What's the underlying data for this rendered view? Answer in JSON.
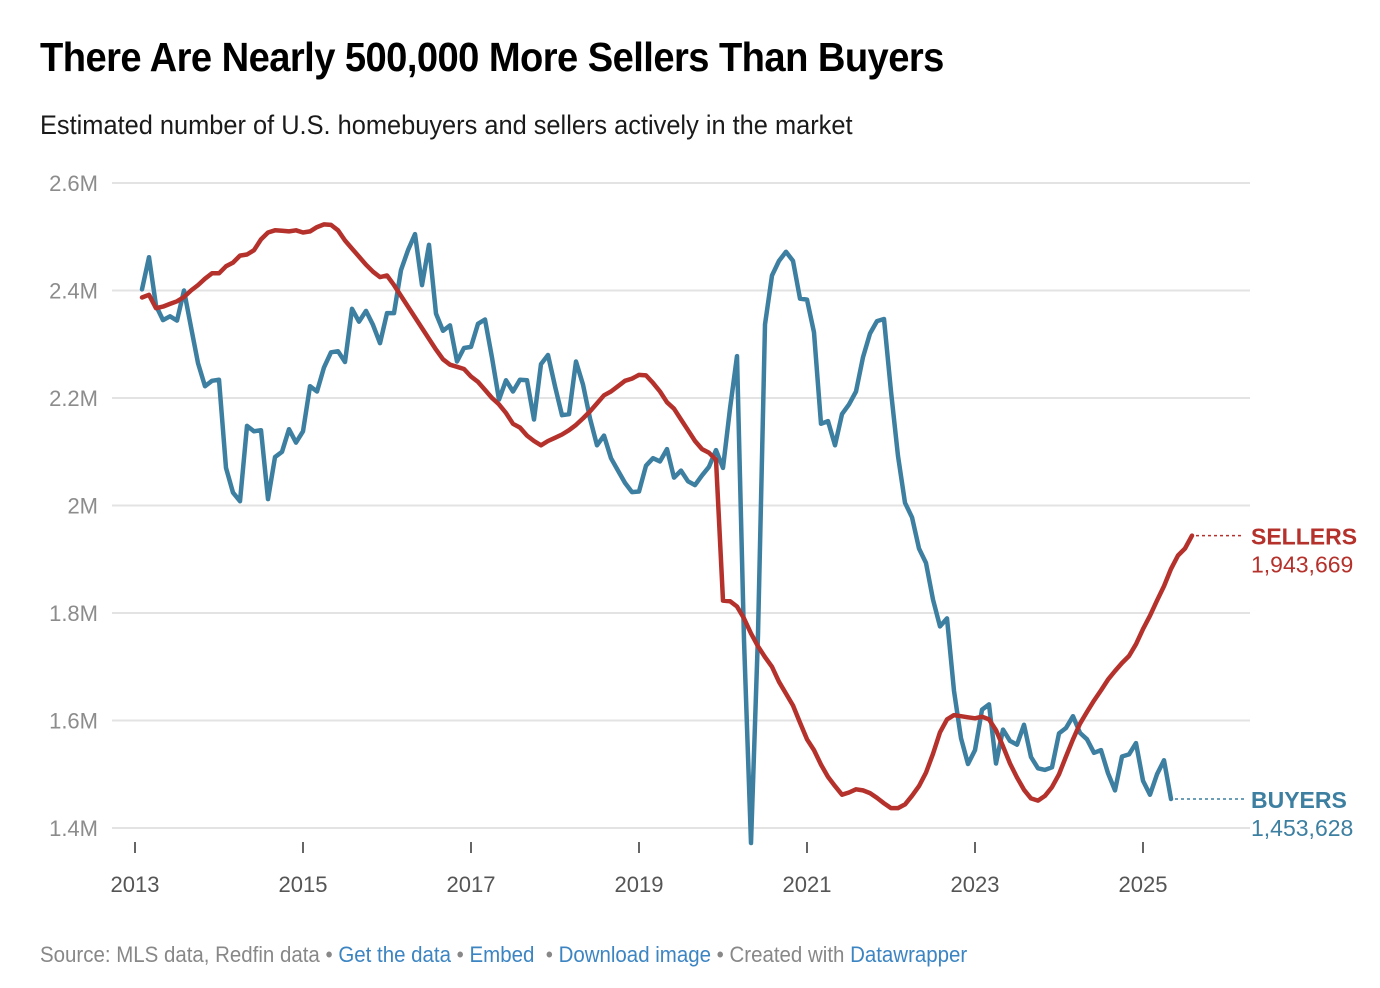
{
  "header": {
    "title": "There Are Nearly 500,000 More Sellers Than Buyers",
    "subtitle": "Estimated number of U.S. homebuyers and sellers actively in the market"
  },
  "footer": {
    "source_text": "Source: MLS data, Redfin data",
    "separator": " • ",
    "get_data_label": "Get the data",
    "embed_label": "Embed",
    "download_label": "Download image",
    "created_with_text": "Created with",
    "datawrapper_label": "Datawrapper"
  },
  "colors": {
    "sellers": "#b5312b",
    "buyers": "#3d7fa0",
    "grid": "#e3e3e3",
    "link": "#3c85c2"
  },
  "chart_data": {
    "type": "line",
    "title": "There Are Nearly 500,000 More Sellers Than Buyers",
    "subtitle": "Estimated number of U.S. homebuyers and sellers actively in the market",
    "xlabel": "",
    "ylabel": "",
    "x_start": "2013-02",
    "x_frequency": "monthly",
    "x_ticks": [
      "2013",
      "2015",
      "2017",
      "2019",
      "2021",
      "2023",
      "2025"
    ],
    "x_range": [
      2013.0,
      2026.25
    ],
    "y_ticks": [
      1.4,
      1.6,
      1.8,
      2.0,
      2.2,
      2.4,
      2.6
    ],
    "y_tick_labels": [
      "1.4M",
      "1.6M",
      "1.8M",
      "2M",
      "2.2M",
      "2.4M",
      "2.6M"
    ],
    "ylim": [
      1.4,
      2.6
    ],
    "y_units": "millions",
    "grid": true,
    "legend": "direct-labels-right",
    "series": [
      {
        "name": "SELLERS",
        "end_label": "SELLERS",
        "end_value": "1,943,669",
        "values": [
          2.387,
          2.392,
          2.367,
          2.37,
          2.375,
          2.38,
          2.388,
          2.4,
          2.41,
          2.422,
          2.432,
          2.432,
          2.445,
          2.452,
          2.465,
          2.467,
          2.475,
          2.495,
          2.508,
          2.512,
          2.511,
          2.51,
          2.512,
          2.508,
          2.51,
          2.518,
          2.523,
          2.522,
          2.512,
          2.493,
          2.478,
          2.463,
          2.448,
          2.435,
          2.425,
          2.428,
          2.41,
          2.39,
          2.37,
          2.35,
          2.33,
          2.31,
          2.29,
          2.272,
          2.262,
          2.258,
          2.254,
          2.24,
          2.23,
          2.215,
          2.2,
          2.188,
          2.172,
          2.152,
          2.145,
          2.13,
          2.12,
          2.112,
          2.12,
          2.126,
          2.132,
          2.14,
          2.15,
          2.162,
          2.175,
          2.19,
          2.205,
          2.212,
          2.222,
          2.232,
          2.236,
          2.243,
          2.242,
          2.228,
          2.212,
          2.192,
          2.18,
          2.16,
          2.14,
          2.12,
          2.105,
          2.098,
          2.085,
          1.823,
          1.822,
          1.812,
          1.79,
          1.762,
          1.738,
          1.718,
          1.7,
          1.672,
          1.65,
          1.628,
          1.596,
          1.565,
          1.545,
          1.518,
          1.495,
          1.478,
          1.462,
          1.466,
          1.472,
          1.47,
          1.465,
          1.456,
          1.446,
          1.437,
          1.437,
          1.444,
          1.46,
          1.478,
          1.503,
          1.538,
          1.578,
          1.602,
          1.61,
          1.608,
          1.606,
          1.604,
          1.607,
          1.602,
          1.582,
          1.552,
          1.52,
          1.494,
          1.471,
          1.455,
          1.451,
          1.46,
          1.476,
          1.5,
          1.533,
          1.565,
          1.594,
          1.616,
          1.637,
          1.656,
          1.676,
          1.692,
          1.707,
          1.72,
          1.742,
          1.77,
          1.795,
          1.823,
          1.85,
          1.882,
          1.907,
          1.92,
          1.944
        ]
      },
      {
        "name": "BUYERS",
        "end_label": "BUYERS",
        "end_value": "1,453,628",
        "values": [
          2.402,
          2.462,
          2.372,
          2.345,
          2.352,
          2.344,
          2.4,
          2.332,
          2.265,
          2.222,
          2.232,
          2.234,
          2.07,
          2.024,
          2.008,
          2.148,
          2.138,
          2.14,
          2.012,
          2.09,
          2.1,
          2.142,
          2.117,
          2.138,
          2.222,
          2.212,
          2.257,
          2.285,
          2.287,
          2.267,
          2.366,
          2.342,
          2.362,
          2.336,
          2.302,
          2.358,
          2.358,
          2.438,
          2.475,
          2.505,
          2.41,
          2.485,
          2.357,
          2.325,
          2.335,
          2.268,
          2.293,
          2.295,
          2.338,
          2.346,
          2.275,
          2.197,
          2.233,
          2.212,
          2.234,
          2.233,
          2.16,
          2.263,
          2.28,
          2.222,
          2.168,
          2.17,
          2.268,
          2.225,
          2.162,
          2.112,
          2.13,
          2.088,
          2.065,
          2.042,
          2.025,
          2.026,
          2.074,
          2.088,
          2.082,
          2.105,
          2.052,
          2.065,
          2.045,
          2.038,
          2.056,
          2.072,
          2.103,
          2.07,
          2.18,
          2.278,
          1.75,
          1.372,
          1.76,
          2.337,
          2.428,
          2.455,
          2.472,
          2.455,
          2.385,
          2.383,
          2.322,
          2.152,
          2.157,
          2.112,
          2.17,
          2.188,
          2.212,
          2.276,
          2.32,
          2.343,
          2.347,
          2.212,
          2.092,
          2.005,
          1.978,
          1.92,
          1.893,
          1.825,
          1.775,
          1.79,
          1.655,
          1.567,
          1.519,
          1.545,
          1.62,
          1.63,
          1.52,
          1.583,
          1.562,
          1.555,
          1.592,
          1.532,
          1.511,
          1.508,
          1.513,
          1.576,
          1.586,
          1.608,
          1.577,
          1.565,
          1.54,
          1.545,
          1.502,
          1.47,
          1.533,
          1.537,
          1.558,
          1.488,
          1.462,
          1.5,
          1.526,
          1.454
        ]
      }
    ]
  }
}
